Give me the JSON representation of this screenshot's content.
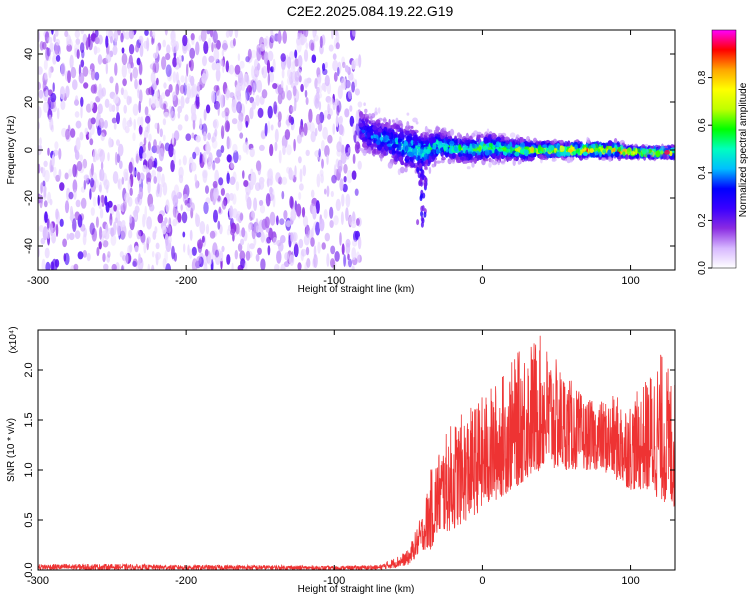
{
  "title": "C2E2.2025.084.19.22.G19",
  "chart_data": [
    {
      "id": "spectrogram",
      "type": "heatmap",
      "xlabel": "Height of straight line (km)",
      "ylabel": "Frequency (Hz)",
      "xlim": [
        -300,
        130
      ],
      "ylim": [
        -50,
        50
      ],
      "xticks": [
        -300,
        -200,
        -100,
        0,
        100
      ],
      "yticks": [
        -40,
        -20,
        0,
        20,
        40
      ],
      "grid": false,
      "noise_region_x": [
        -300,
        -82
      ],
      "signal_track": {
        "x": [
          -82,
          -75,
          -65,
          -55,
          -45,
          -40,
          -30,
          -20,
          -10,
          0,
          10,
          20,
          30,
          40,
          50,
          60,
          70,
          80,
          90,
          100,
          110,
          120,
          130
        ],
        "center_freq": [
          9,
          6,
          4,
          2,
          0,
          -1,
          2,
          1,
          0,
          1,
          1,
          0,
          0,
          0,
          0,
          0,
          0,
          0,
          0,
          -1,
          -1,
          -1,
          -1
        ],
        "half_width": [
          8,
          8,
          8,
          9,
          9,
          8,
          6,
          5,
          5,
          5,
          5,
          4,
          4,
          3,
          3,
          3,
          3,
          3,
          3,
          2,
          2,
          2,
          2
        ],
        "peak_amplitude": [
          0.3,
          0.35,
          0.4,
          0.45,
          0.5,
          0.5,
          0.55,
          0.55,
          0.6,
          0.6,
          0.6,
          0.65,
          0.7,
          0.75,
          0.8,
          0.85,
          0.85,
          0.85,
          0.9,
          0.9,
          0.85,
          0.85,
          0.8
        ]
      },
      "colorbar": {
        "label": "Normalized spectral amplitude",
        "range": [
          0,
          1
        ],
        "ticks": [
          "0.0",
          "0.2",
          "0.4",
          "0.6",
          "0.8"
        ],
        "colormap": [
          "#ffffff",
          "#d7b8ff",
          "#8a2be2",
          "#3a00ff",
          "#0000ff",
          "#00bfff",
          "#00ffbf",
          "#00ff00",
          "#bfff00",
          "#ffff00",
          "#ffa500",
          "#ff0000",
          "#ff00ff"
        ]
      }
    },
    {
      "id": "snr",
      "type": "line",
      "xlabel": "Height of straight line (km)",
      "ylabel": "SNR (10 * v/v)",
      "multiplier": "(x10⁴)",
      "xlim": [
        -300,
        130
      ],
      "ylim": [
        0,
        2.4
      ],
      "xticks": [
        -300,
        -200,
        -100,
        0,
        100
      ],
      "yticks": [
        "0.0",
        "0.5",
        "1.0",
        "1.5",
        "2.0"
      ],
      "grid": false,
      "color": "#ee3333",
      "series": [
        {
          "x": [
            -300,
            -250,
            -200,
            -150,
            -100,
            -70,
            -60,
            -50,
            -40,
            -35,
            -30,
            -20,
            -10,
            0,
            10,
            20,
            30,
            40,
            50,
            60,
            70,
            80,
            90,
            100,
            110,
            120,
            130
          ],
          "envelope": [
            0.06,
            0.06,
            0.05,
            0.05,
            0.04,
            0.05,
            0.12,
            0.2,
            0.6,
            1.0,
            1.2,
            1.5,
            1.6,
            1.75,
            1.9,
            2.1,
            2.3,
            2.35,
            2.1,
            1.9,
            1.7,
            1.7,
            1.75,
            1.7,
            1.9,
            2.2,
            1.9
          ],
          "floor": [
            0.0,
            0.0,
            0.0,
            0.0,
            0.0,
            0.0,
            0.02,
            0.05,
            0.2,
            0.2,
            0.35,
            0.4,
            0.5,
            0.6,
            0.7,
            0.8,
            0.9,
            1.0,
            1.0,
            1.0,
            1.0,
            1.0,
            0.9,
            0.8,
            0.8,
            0.7,
            0.6
          ]
        }
      ]
    }
  ]
}
